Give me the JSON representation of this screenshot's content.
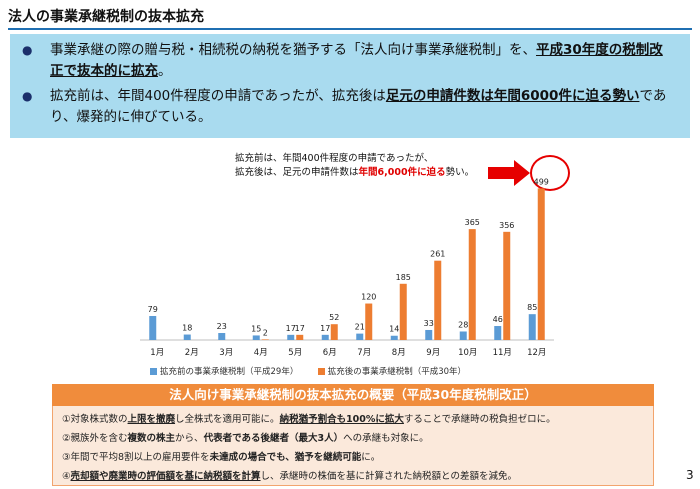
{
  "title": "法人の事業承継税制の抜本拡充",
  "bullets": {
    "b1": {
      "pre": "事業承継の際の贈与税・相続税の納税を猶予する「法人向け事業承継税制」を、",
      "em": "平成30年度の税制改正で抜本的に拡充",
      "post": "。"
    },
    "b2": {
      "pre": "拡充前は、年間400件程度の申請であったが、拡充後は",
      "em": "足元の申請件数は年間6000件に迫る勢い",
      "post": "であり、爆発的に伸びている。"
    }
  },
  "callout": {
    "line1": "拡充前は、年間400件程度の申請であったが、",
    "line2_pre": "拡充後は、足元の申請件数は",
    "line2_em": "年間6,000件に迫る",
    "line2_post": "勢い。"
  },
  "chart_data": {
    "type": "bar",
    "categories": [
      "1月",
      "2月",
      "3月",
      "4月",
      "5月",
      "6月",
      "7月",
      "8月",
      "9月",
      "10月",
      "11月",
      "12月"
    ],
    "series": [
      {
        "name": "拡充前の事業承継税制（平成29年）",
        "color": "#5b9bd5",
        "values": [
          79,
          18,
          23,
          15,
          17,
          17,
          21,
          14,
          33,
          28,
          46,
          85
        ]
      },
      {
        "name": "拡充後の事業承継税制（平成30年）",
        "color": "#ed7d31",
        "values": [
          null,
          null,
          null,
          2,
          17,
          52,
          120,
          185,
          261,
          365,
          356,
          499
        ]
      }
    ],
    "ylim": [
      0,
      520
    ]
  },
  "summary": {
    "header": "法人向け事業承継税制の抜本拡充の概要（平成30年度税制改正）",
    "l1": {
      "a": "①対象株式数の",
      "b": "上限を撤廃",
      "c": "し全株式を適用可能に。",
      "d": "納税猶予割合も100%に拡大",
      "e": "することで承継時の税負担ゼロに。"
    },
    "l2": {
      "a": "②親族外を含む",
      "b": "複数の株主",
      "c": "から、",
      "d": "代表者である後継者（最大3人）",
      "e": "への承継も対象に。"
    },
    "l3": {
      "a": "③年間で平均8割以上の雇用要件を",
      "b": "未達成の場合でも、猶予を継続可能",
      "c": "に。"
    },
    "l4": {
      "a": "④",
      "b": "売却額や廃業時の評価額を基に納税額を計算",
      "c": "し、承継時の株価を基に計算された納税額との差額を減免。"
    }
  },
  "page_number": "3"
}
